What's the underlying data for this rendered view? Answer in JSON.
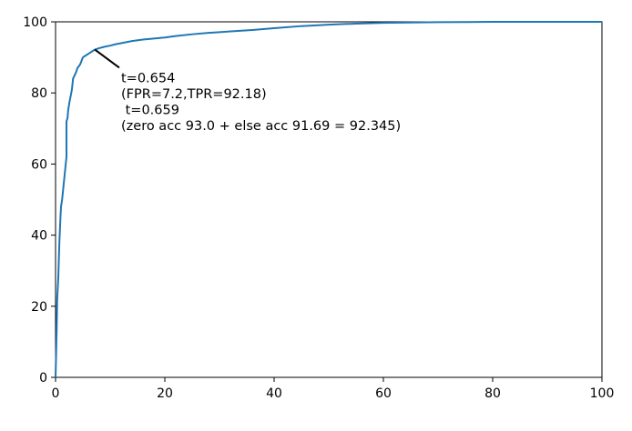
{
  "chart_data": {
    "type": "line",
    "title": "",
    "xlabel": "",
    "ylabel": "",
    "xlim": [
      0,
      100
    ],
    "ylim": [
      0,
      100
    ],
    "grid": false,
    "x_ticks": [
      0,
      20,
      40,
      60,
      80,
      100
    ],
    "y_ticks": [
      0,
      20,
      40,
      60,
      80,
      100
    ],
    "x_tick_labels": [
      "0",
      "20",
      "40",
      "60",
      "80",
      "100"
    ],
    "y_tick_labels": [
      "0",
      "20",
      "40",
      "60",
      "80",
      "100"
    ],
    "series": [
      {
        "color": "#1f77b4",
        "x": [
          0,
          0.2,
          0.3,
          0.5,
          0.6,
          0.7,
          0.9,
          1.0,
          1.2,
          1.4,
          1.6,
          1.8,
          2.0,
          2.0,
          2.2,
          2.3,
          2.5,
          3.0,
          3.2,
          3.5,
          3.8,
          4.0,
          4.5,
          5.0,
          5.5,
          6.0,
          6.5,
          7.2,
          8,
          9,
          10,
          11,
          12,
          14,
          16,
          18,
          20,
          22,
          25,
          28,
          30,
          33,
          36,
          40,
          45,
          50,
          55,
          60,
          65,
          70,
          75,
          80,
          85,
          90,
          95,
          100
        ],
        "y": [
          0,
          13,
          22,
          28,
          33,
          38,
          45,
          48,
          50,
          53,
          56,
          59,
          62,
          72,
          73,
          75,
          77,
          81,
          84,
          85,
          86,
          87,
          88,
          90,
          90.5,
          91,
          91.5,
          92.18,
          92.6,
          93.0,
          93.3,
          93.7,
          94.0,
          94.6,
          95.0,
          95.3,
          95.6,
          96.0,
          96.5,
          96.9,
          97.1,
          97.4,
          97.7,
          98.2,
          98.8,
          99.2,
          99.5,
          99.7,
          99.8,
          99.9,
          99.95,
          100,
          100,
          100,
          100,
          100
        ]
      }
    ],
    "annotation": {
      "lines": [
        "t=0.654",
        "(FPR=7.2,TPR=92.18)",
        " t=0.659",
        "(zero acc 93.0 + else acc 91.69 = 92.345)"
      ],
      "point": [
        7.2,
        92.18
      ],
      "text_anchor_data": [
        12,
        83
      ]
    }
  }
}
